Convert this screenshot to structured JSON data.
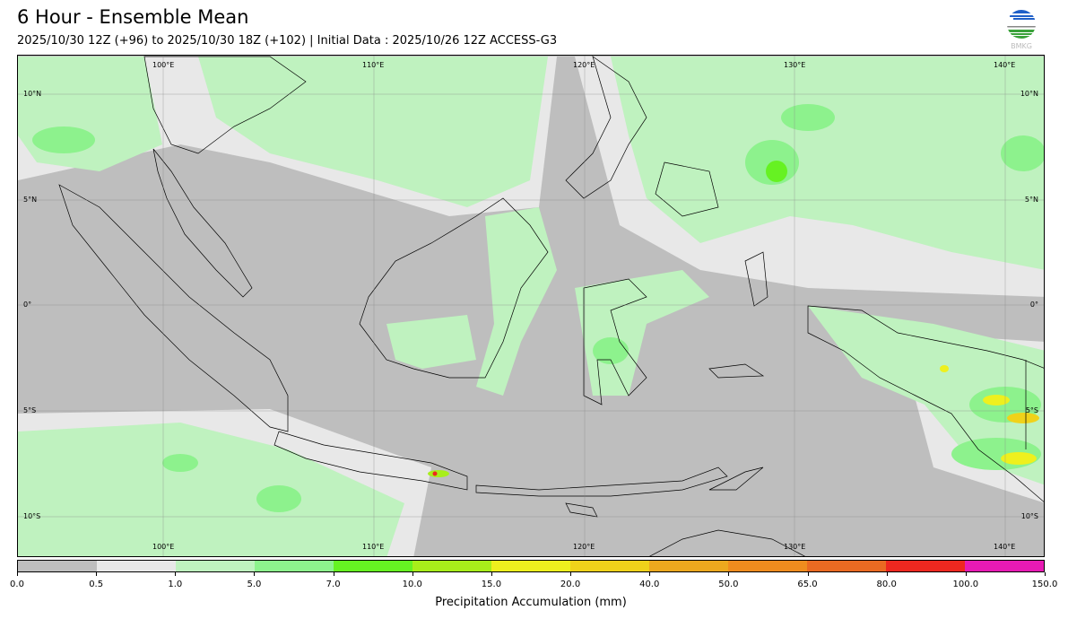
{
  "header": {
    "title": "6 Hour - Ensemble Mean",
    "subtitle": "2025/10/30 12Z (+96) to 2025/10/30 18Z (+102) | Initial Data : 2025/10/26 12Z ACCESS-G3",
    "logo_text": "BMKG"
  },
  "map": {
    "lon_labels": [
      "100°E",
      "110°E",
      "120°E",
      "130°E",
      "140°E"
    ],
    "lat_labels": [
      "10°N",
      "5°N",
      "0°",
      "5°S",
      "10°S"
    ],
    "extent": {
      "lon": [
        93.1,
        141.7
      ],
      "lat": [
        -12.0,
        11.8
      ]
    }
  },
  "colorbar": {
    "title": "Precipitation Accumulation (mm)",
    "levels": [
      "0.0",
      "0.5",
      "1.0",
      "5.0",
      "7.0",
      "10.0",
      "15.0",
      "20.0",
      "40.0",
      "50.0",
      "65.0",
      "80.0",
      "100.0",
      "150.0"
    ],
    "colors": [
      "#bebebe",
      "#e8e8e8",
      "#bff2bf",
      "#8df28d",
      "#66f222",
      "#a8ee1a",
      "#eef01e",
      "#f0d21a",
      "#eca81e",
      "#ef8c1e",
      "#ea6a22",
      "#ee2820",
      "#e81ab4"
    ]
  }
}
